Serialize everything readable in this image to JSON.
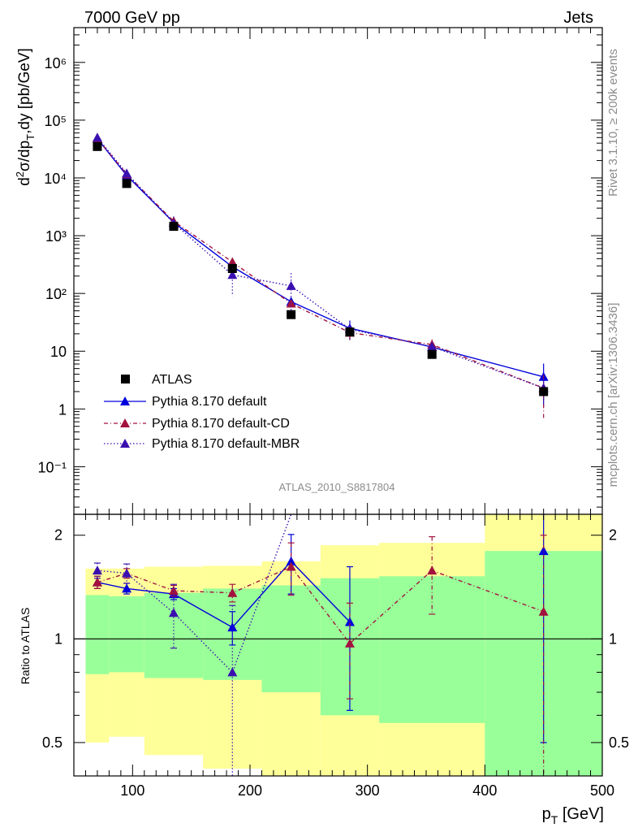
{
  "header": {
    "left": "7000 GeV pp",
    "right": "Jets"
  },
  "side_labels": {
    "rivet": "Rivet 3.1.10, ≥ 200k events",
    "mcplots": "mcplots.cern.ch [arXiv:1306.3436]"
  },
  "analysis_id": "ATLAS_2010_S8817804",
  "colors": {
    "atlas": "#000000",
    "default": "#0000dd",
    "cd": "#a3123e",
    "mbr": "#3a0fb0",
    "band_yellow": "#ffff99",
    "band_green": "#99ff99"
  },
  "chart_data": [
    {
      "type": "scatter",
      "scale": "log",
      "ylabel_parts": [
        "d",
        "2",
        "σ/dp",
        "T",
        ",dy [pb/GeV]"
      ],
      "xlim": [
        50,
        500
      ],
      "ylim": [
        0.015,
        4000000
      ],
      "y_tick_labels": [
        "10⁻¹",
        "1",
        "10",
        "10²",
        "10³",
        "10⁴",
        "10⁵",
        "10⁶"
      ],
      "legend": [
        "ATLAS",
        "Pythia 8.170 default",
        "Pythia 8.170 default-CD",
        "Pythia 8.170 default-MBR"
      ],
      "legend_position": "bottom-left",
      "series": [
        {
          "name": "ATLAS",
          "x": [
            70,
            95,
            135,
            185,
            235,
            285,
            355,
            450
          ],
          "y": [
            35000,
            8000,
            1450,
            270,
            43,
            21.5,
            8.8,
            2.0
          ]
        },
        {
          "name": "Pythia 8.170 default",
          "x": [
            70,
            95,
            135,
            185,
            235,
            285,
            355,
            450
          ],
          "y": [
            48000,
            11000,
            1700,
            290,
            72,
            25,
            11.8,
            3.6
          ],
          "err": [
            2500,
            600,
            120,
            40,
            12,
            9,
            1.5,
            2.5
          ]
        },
        {
          "name": "Pythia 8.170 default-CD",
          "x": [
            70,
            95,
            135,
            185,
            235,
            285,
            355,
            450
          ],
          "y": [
            48000,
            11600,
            1780,
            350,
            67,
            21,
            13,
            2.3
          ],
          "err": [
            2500,
            600,
            120,
            40,
            12,
            6,
            3,
            1.6
          ]
        },
        {
          "name": "Pythia 8.170 default-MBR",
          "x": [
            70,
            95,
            135,
            185,
            235,
            285,
            355,
            450
          ],
          "y": [
            50000,
            12000,
            1650,
            210,
            135,
            24,
            12,
            2.3
          ],
          "err": [
            3000,
            800,
            500,
            120,
            90,
            8,
            2,
            1
          ]
        }
      ]
    },
    {
      "type": "line",
      "scale": "log",
      "xlabel_parts": [
        "p",
        "T",
        " [GeV]"
      ],
      "ylabel": "Ratio to ATLAS",
      "xlim": [
        50,
        500
      ],
      "ylim": [
        0.4,
        2.3
      ],
      "x_ticks": [
        100,
        200,
        300,
        400,
        500
      ],
      "y_ticks": [
        0.5,
        1,
        2
      ],
      "y_tick_labels": [
        "0.5",
        "1",
        "2"
      ],
      "reference_line": 1,
      "bands": [
        {
          "x0": 60,
          "x1": 80,
          "y_lo": 0.5,
          "y_hi": 1.6,
          "g_lo": 0.79,
          "g_hi": 1.34
        },
        {
          "x0": 80,
          "x1": 110,
          "y_lo": 0.52,
          "y_hi": 1.6,
          "g_lo": 0.8,
          "g_hi": 1.33
        },
        {
          "x0": 110,
          "x1": 160,
          "y_lo": 0.46,
          "y_hi": 1.62,
          "g_lo": 0.77,
          "g_hi": 1.36
        },
        {
          "x0": 160,
          "x1": 210,
          "y_lo": 0.42,
          "y_hi": 1.63,
          "g_lo": 0.76,
          "g_hi": 1.4
        },
        {
          "x0": 210,
          "x1": 260,
          "y_lo": 0.4,
          "y_hi": 1.68,
          "g_lo": 0.7,
          "g_hi": 1.43
        },
        {
          "x0": 260,
          "x1": 310,
          "y_lo": 0.4,
          "y_hi": 1.87,
          "g_lo": 0.6,
          "g_hi": 1.5
        },
        {
          "x0": 310,
          "x1": 400,
          "y_lo": 0.4,
          "y_hi": 1.9,
          "g_lo": 0.57,
          "g_hi": 1.52
        },
        {
          "x0": 400,
          "x1": 500,
          "y_lo": 0.4,
          "y_hi": 2.3,
          "g_lo": 0.4,
          "g_hi": 1.8
        }
      ],
      "series": [
        {
          "name": "Pythia 8.170 default",
          "x": [
            70,
            95,
            135,
            185,
            235,
            285,
            355,
            450
          ],
          "y": [
            1.46,
            1.4,
            1.35,
            1.08,
            1.68,
            1.12,
            null,
            1.8
          ],
          "err": [
            0.06,
            0.05,
            0.05,
            0.12,
            0.33,
            0.5,
            null,
            1.3
          ]
        },
        {
          "name": "Pythia 8.170 default-CD",
          "x": [
            70,
            95,
            135,
            185,
            235,
            285,
            355,
            450
          ],
          "y": [
            1.46,
            1.55,
            1.38,
            1.36,
            1.62,
            0.97,
            1.58,
            1.2
          ],
          "err": [
            0.06,
            0.05,
            0.05,
            0.08,
            0.28,
            0.3,
            0.4,
            0.8
          ]
        },
        {
          "name": "Pythia 8.170 default-MBR",
          "x": [
            70,
            95,
            135,
            185,
            235,
            285,
            355,
            450
          ],
          "y": [
            1.58,
            1.55,
            1.19,
            0.8,
            2.3,
            null,
            null,
            null
          ],
          "err": [
            0.08,
            0.1,
            0.25,
            0.45,
            null,
            null,
            null,
            null
          ]
        }
      ]
    }
  ]
}
